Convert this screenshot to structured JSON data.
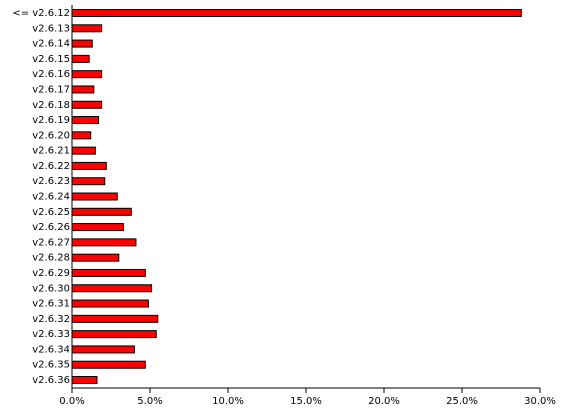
{
  "chart_data": {
    "type": "hbar",
    "categories": [
      "<= v2.6.12",
      "v2.6.13",
      "v2.6.14",
      "v2.6.15",
      "v2.6.16",
      "v2.6.17",
      "v2.6.18",
      "v2.6.19",
      "v2.6.20",
      "v2.6.21",
      "v2.6.22",
      "v2.6.23",
      "v2.6.24",
      "v2.6.25",
      "v2.6.26",
      "v2.6.27",
      "v2.6.28",
      "v2.6.29",
      "v2.6.30",
      "v2.6.31",
      "v2.6.32",
      "v2.6.33",
      "v2.6.34",
      "v2.6.35",
      "v2.6.36"
    ],
    "values": [
      28.8,
      1.9,
      1.3,
      1.1,
      1.9,
      1.4,
      1.9,
      1.7,
      1.2,
      1.5,
      2.2,
      2.1,
      2.9,
      3.8,
      3.3,
      4.1,
      3.0,
      4.7,
      5.1,
      4.9,
      5.5,
      5.4,
      4.0,
      4.7,
      1.6
    ],
    "color": "#ff0000",
    "xlim": [
      0,
      30
    ],
    "xticks": [
      {
        "value": 0,
        "label": "0.0%"
      },
      {
        "value": 5,
        "label": "5.0%"
      },
      {
        "value": 10,
        "label": "10.0%"
      },
      {
        "value": 15,
        "label": "15.0%"
      },
      {
        "value": 20,
        "label": "20.0%"
      },
      {
        "value": 25,
        "label": "25.0%"
      },
      {
        "value": 30,
        "label": "30.0%"
      }
    ]
  }
}
